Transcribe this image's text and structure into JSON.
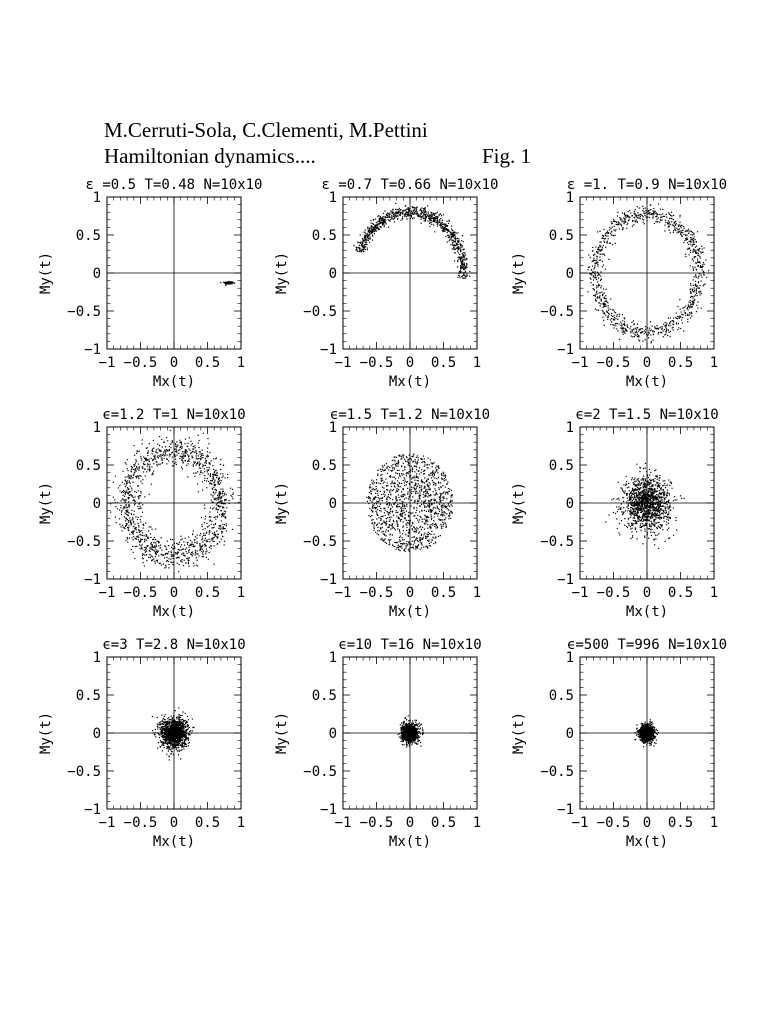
{
  "header": {
    "authors": "M.Cerruti-Sola, C.Clementi, M.Pettini",
    "title": "Hamiltonian dynamics....",
    "figure_label": "Fig. 1"
  },
  "chart_data": [
    {
      "type": "scatter",
      "title": "ε =0.5  T=0.48  N=10x10",
      "xlabel": "Mx(t)",
      "ylabel": "My(t)",
      "xlim": [
        -1,
        1
      ],
      "ylim": [
        -1,
        1
      ],
      "xticks": [
        "−1",
        "−0.5",
        "0",
        "0.5",
        "1"
      ],
      "yticks": [
        "−1",
        "−0.5",
        "0",
        "0.5",
        "1"
      ],
      "distribution": {
        "kind": "cluster",
        "center": [
          0.82,
          -0.13
        ],
        "spread": [
          0.03,
          0.008
        ],
        "points": 220
      }
    },
    {
      "type": "scatter",
      "title": "ε =0.7  T=0.66  N=10x10",
      "xlabel": "Mx(t)",
      "ylabel": "My(t)",
      "xlim": [
        -1,
        1
      ],
      "ylim": [
        -1,
        1
      ],
      "xticks": [
        "−1",
        "−0.5",
        "0",
        "0.5",
        "1"
      ],
      "yticks": [
        "−1",
        "−0.5",
        "0",
        "0.5",
        "1"
      ],
      "distribution": {
        "kind": "arc",
        "radius": 0.8,
        "radius_spread": 0.04,
        "angle_start_deg": 160,
        "angle_end_deg": -5,
        "points": 900
      }
    },
    {
      "type": "scatter",
      "title": "ε =1.  T=0.9  N=10x10",
      "xlabel": "Mx(t)",
      "ylabel": "My(t)",
      "xlim": [
        -1,
        1
      ],
      "ylim": [
        -1,
        1
      ],
      "xticks": [
        "−1",
        "−0.5",
        "0",
        "0.5",
        "1"
      ],
      "yticks": [
        "−1",
        "−0.5",
        "0",
        "0.5",
        "1"
      ],
      "distribution": {
        "kind": "ring",
        "radius": 0.78,
        "radius_spread": 0.06,
        "points": 1000
      }
    },
    {
      "type": "scatter",
      "title": "ϵ=1.2  T=1  N=10x10",
      "xlabel": "Mx(t)",
      "ylabel": "My(t)",
      "xlim": [
        -1,
        1
      ],
      "ylim": [
        -1,
        1
      ],
      "xticks": [
        "−1",
        "−0.5",
        "0",
        "0.5",
        "1"
      ],
      "yticks": [
        "−1",
        "−0.5",
        "0",
        "0.5",
        "1"
      ],
      "distribution": {
        "kind": "ring",
        "radius": 0.7,
        "radius_spread": 0.1,
        "points": 1300
      }
    },
    {
      "type": "scatter",
      "title": "ϵ=1.5  T=1.2  N=10x10",
      "xlabel": "Mx(t)",
      "ylabel": "My(t)",
      "xlim": [
        -1,
        1
      ],
      "ylim": [
        -1,
        1
      ],
      "xticks": [
        "−1",
        "−0.5",
        "0",
        "0.5",
        "1"
      ],
      "yticks": [
        "−1",
        "−0.5",
        "0",
        "0.5",
        "1"
      ],
      "distribution": {
        "kind": "disk",
        "radius": 0.65,
        "points": 1200
      }
    },
    {
      "type": "scatter",
      "title": "ϵ=2  T=1.5  N=10x10",
      "xlabel": "Mx(t)",
      "ylabel": "My(t)",
      "xlim": [
        -1,
        1
      ],
      "ylim": [
        -1,
        1
      ],
      "xticks": [
        "−1",
        "−0.5",
        "0",
        "0.5",
        "1"
      ],
      "yticks": [
        "−1",
        "−0.5",
        "0",
        "0.5",
        "1"
      ],
      "distribution": {
        "kind": "gaussian",
        "sigma": 0.17,
        "points": 1300
      }
    },
    {
      "type": "scatter",
      "title": "ϵ=3  T=2.8  N=10x10",
      "xlabel": "Mx(t)",
      "ylabel": "My(t)",
      "xlim": [
        -1,
        1
      ],
      "ylim": [
        -1,
        1
      ],
      "xticks": [
        "−1",
        "−0.5",
        "0",
        "0.5",
        "1"
      ],
      "yticks": [
        "−1",
        "−0.5",
        "0",
        "0.5",
        "1"
      ],
      "distribution": {
        "kind": "gaussian",
        "sigma": 0.1,
        "points": 1300
      }
    },
    {
      "type": "scatter",
      "title": "ϵ=10  T=16  N=10x10",
      "xlabel": "Mx(t)",
      "ylabel": "My(t)",
      "xlim": [
        -1,
        1
      ],
      "ylim": [
        -1,
        1
      ],
      "xticks": [
        "−1",
        "−0.5",
        "0",
        "0.5",
        "1"
      ],
      "yticks": [
        "−1",
        "−0.5",
        "0",
        "0.5",
        "1"
      ],
      "distribution": {
        "kind": "gaussian",
        "sigma": 0.06,
        "points": 1100
      }
    },
    {
      "type": "scatter",
      "title": "ϵ=500  T=996  N=10x10",
      "xlabel": "Mx(t)",
      "ylabel": "My(t)",
      "xlim": [
        -1,
        1
      ],
      "ylim": [
        -1,
        1
      ],
      "xticks": [
        "−1",
        "−0.5",
        "0",
        "0.5",
        "1"
      ],
      "yticks": [
        "−1",
        "−0.5",
        "0",
        "0.5",
        "1"
      ],
      "distribution": {
        "kind": "gaussian",
        "sigma": 0.055,
        "points": 1100
      }
    }
  ]
}
